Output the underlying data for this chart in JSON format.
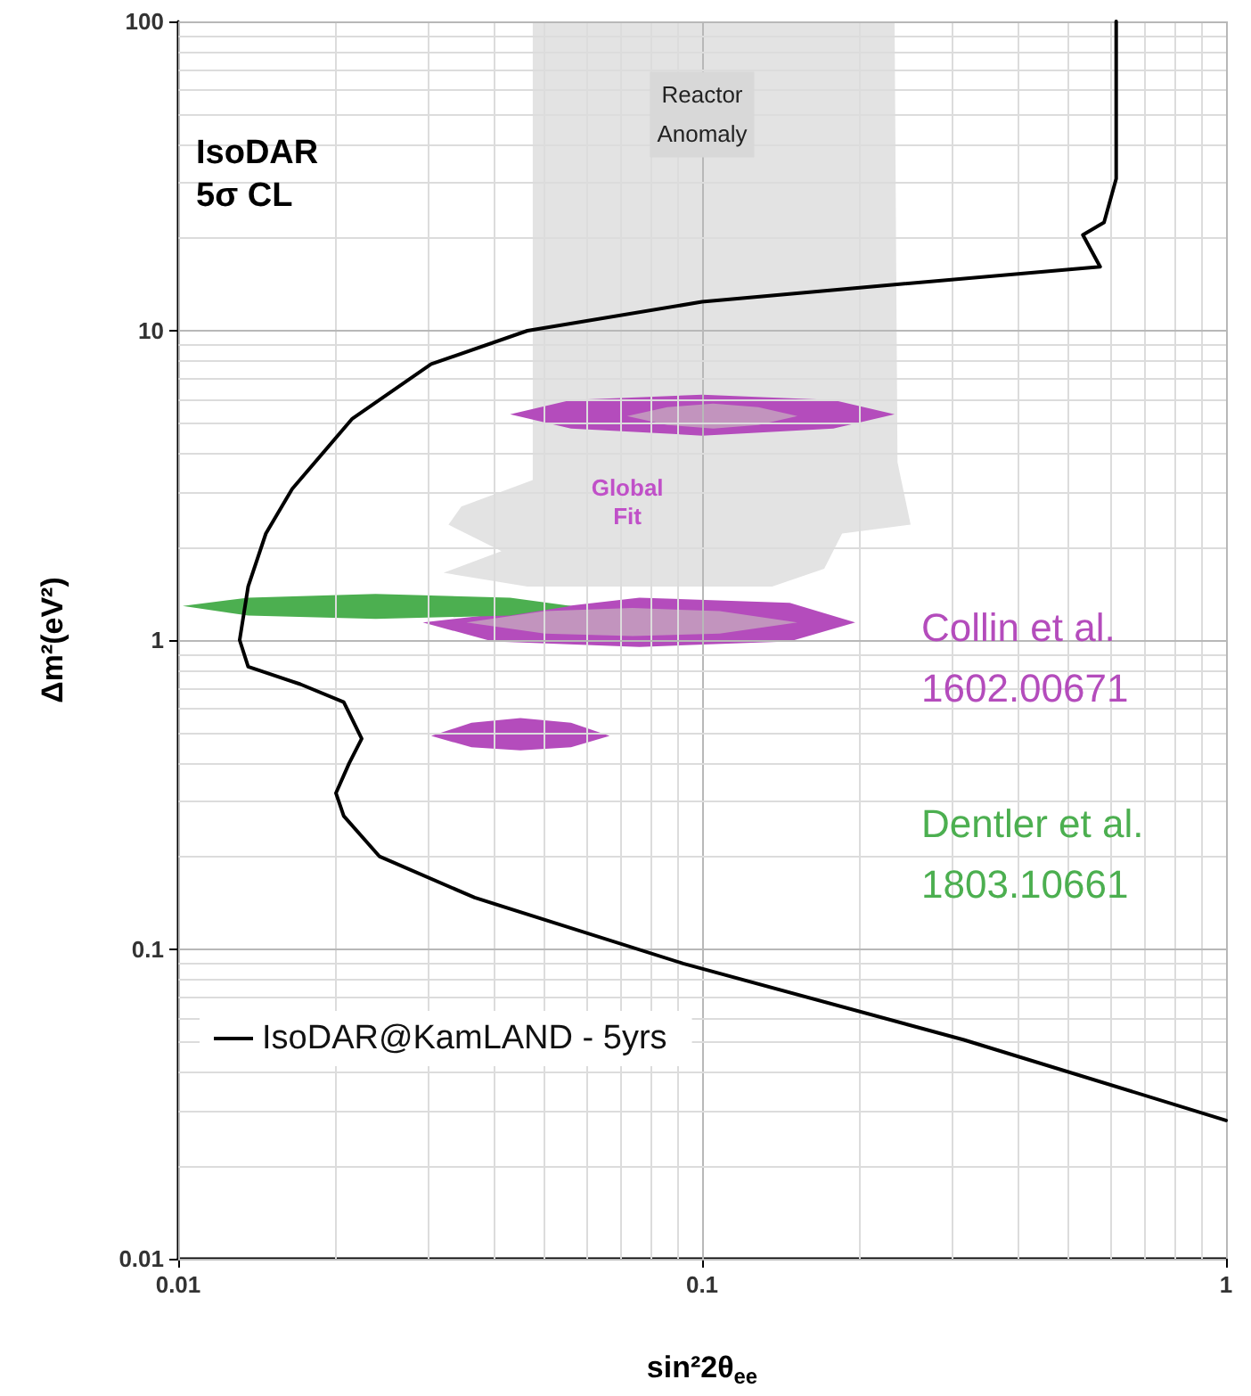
{
  "chart_data": {
    "type": "line",
    "xlabel": "sin²2θ$_{ee}$",
    "ylabel": "Δm²(eV²)",
    "xlim": [
      0.01,
      1
    ],
    "ylim": [
      0.01,
      100
    ],
    "xticks": [
      0.01,
      0.1,
      1
    ],
    "yticks": [
      0.01,
      0.1,
      1,
      10,
      100
    ],
    "log": "xy",
    "grid": true,
    "legend": "bottom left",
    "annotations": [
      "IsoDAR\n5σ CL",
      "Reactor\nAnomaly",
      "Global\nFit"
    ],
    "series": [
      {
        "type": "area",
        "color": "#e3e3e3",
        "x": [
          0.0475,
          0.233,
          0.236,
          0.25,
          0.185,
          0.171,
          0.136,
          0.0464,
          0.0321,
          0.0414,
          0.0328,
          0.0347,
          0.0475
        ],
        "values": [
          100,
          100,
          3.76,
          2.36,
          2.21,
          1.7,
          1.49,
          1.49,
          1.65,
          1.94,
          2.36,
          2.7,
          3.29
        ]
      },
      {
        "type": "area",
        "name": "Collin et al. 1602.00671",
        "color": "#b44cbc",
        "x": [
          0.043,
          0.0562,
          0.1,
          0.178,
          0.233,
          0.178,
          0.1,
          0.0562,
          null,
          0.0293,
          0.0759,
          0.147,
          0.196,
          0.147,
          0.0759,
          0.0398,
          null,
          0.0304,
          0.0363,
          0.045,
          0.0562,
          0.0666,
          0.0562,
          0.045,
          0.0363
        ],
        "values": [
          5.37,
          5.97,
          6.21,
          5.97,
          5.37,
          4.83,
          4.58,
          4.83,
          null,
          1.14,
          1.37,
          1.32,
          1.14,
          0.99,
          0.95,
          0.99,
          null,
          0.49,
          0.54,
          0.56,
          0.54,
          0.49,
          0.45,
          0.44,
          0.45
        ]
      },
      {
        "type": "area",
        "color": "#c294be",
        "x": [
          0.0719,
          0.0858,
          0.105,
          0.128,
          0.152,
          0.128,
          0.105,
          0.0858,
          null,
          0.0355,
          0.0501,
          0.0736,
          0.108,
          0.152,
          0.108,
          0.0736,
          0.0501
        ],
        "values": [
          5.3,
          5.66,
          5.81,
          5.66,
          5.3,
          4.96,
          4.83,
          4.96,
          null,
          1.14,
          1.24,
          1.27,
          1.24,
          1.14,
          1.05,
          1.03,
          1.05
        ]
      },
      {
        "type": "area",
        "name": "Dentler et al. 1803.10661",
        "color": "#4caf50",
        "x": [
          0.0102,
          0.0136,
          0.0238,
          0.043,
          0.0562,
          0.043,
          0.0238,
          0.0136
        ],
        "values": [
          1.29,
          1.37,
          1.41,
          1.37,
          1.29,
          1.2,
          1.17,
          1.2
        ]
      },
      {
        "name": "IsoDAR@KamLAND - 5yrs",
        "color": "#000000",
        "x": [
          0.617,
          0.617,
          0.585,
          0.533,
          0.575,
          0.233,
          0.1,
          0.0464,
          0.0304,
          0.0215,
          0.0165,
          0.0147,
          0.0136,
          0.0131,
          0.0136,
          0.0171,
          0.0207,
          0.0224,
          0.0212,
          0.02,
          0.0207,
          0.0242,
          0.0368,
          0.092,
          0.316,
          1
        ],
        "values": [
          100,
          31,
          22.4,
          20.4,
          16.1,
          14.1,
          12.4,
          10,
          7.8,
          5.2,
          3.08,
          2.21,
          1.49,
          1.0,
          0.82,
          0.72,
          0.63,
          0.48,
          0.4,
          0.32,
          0.27,
          0.2,
          0.147,
          0.09,
          0.051,
          0.028
        ]
      }
    ]
  }
}
